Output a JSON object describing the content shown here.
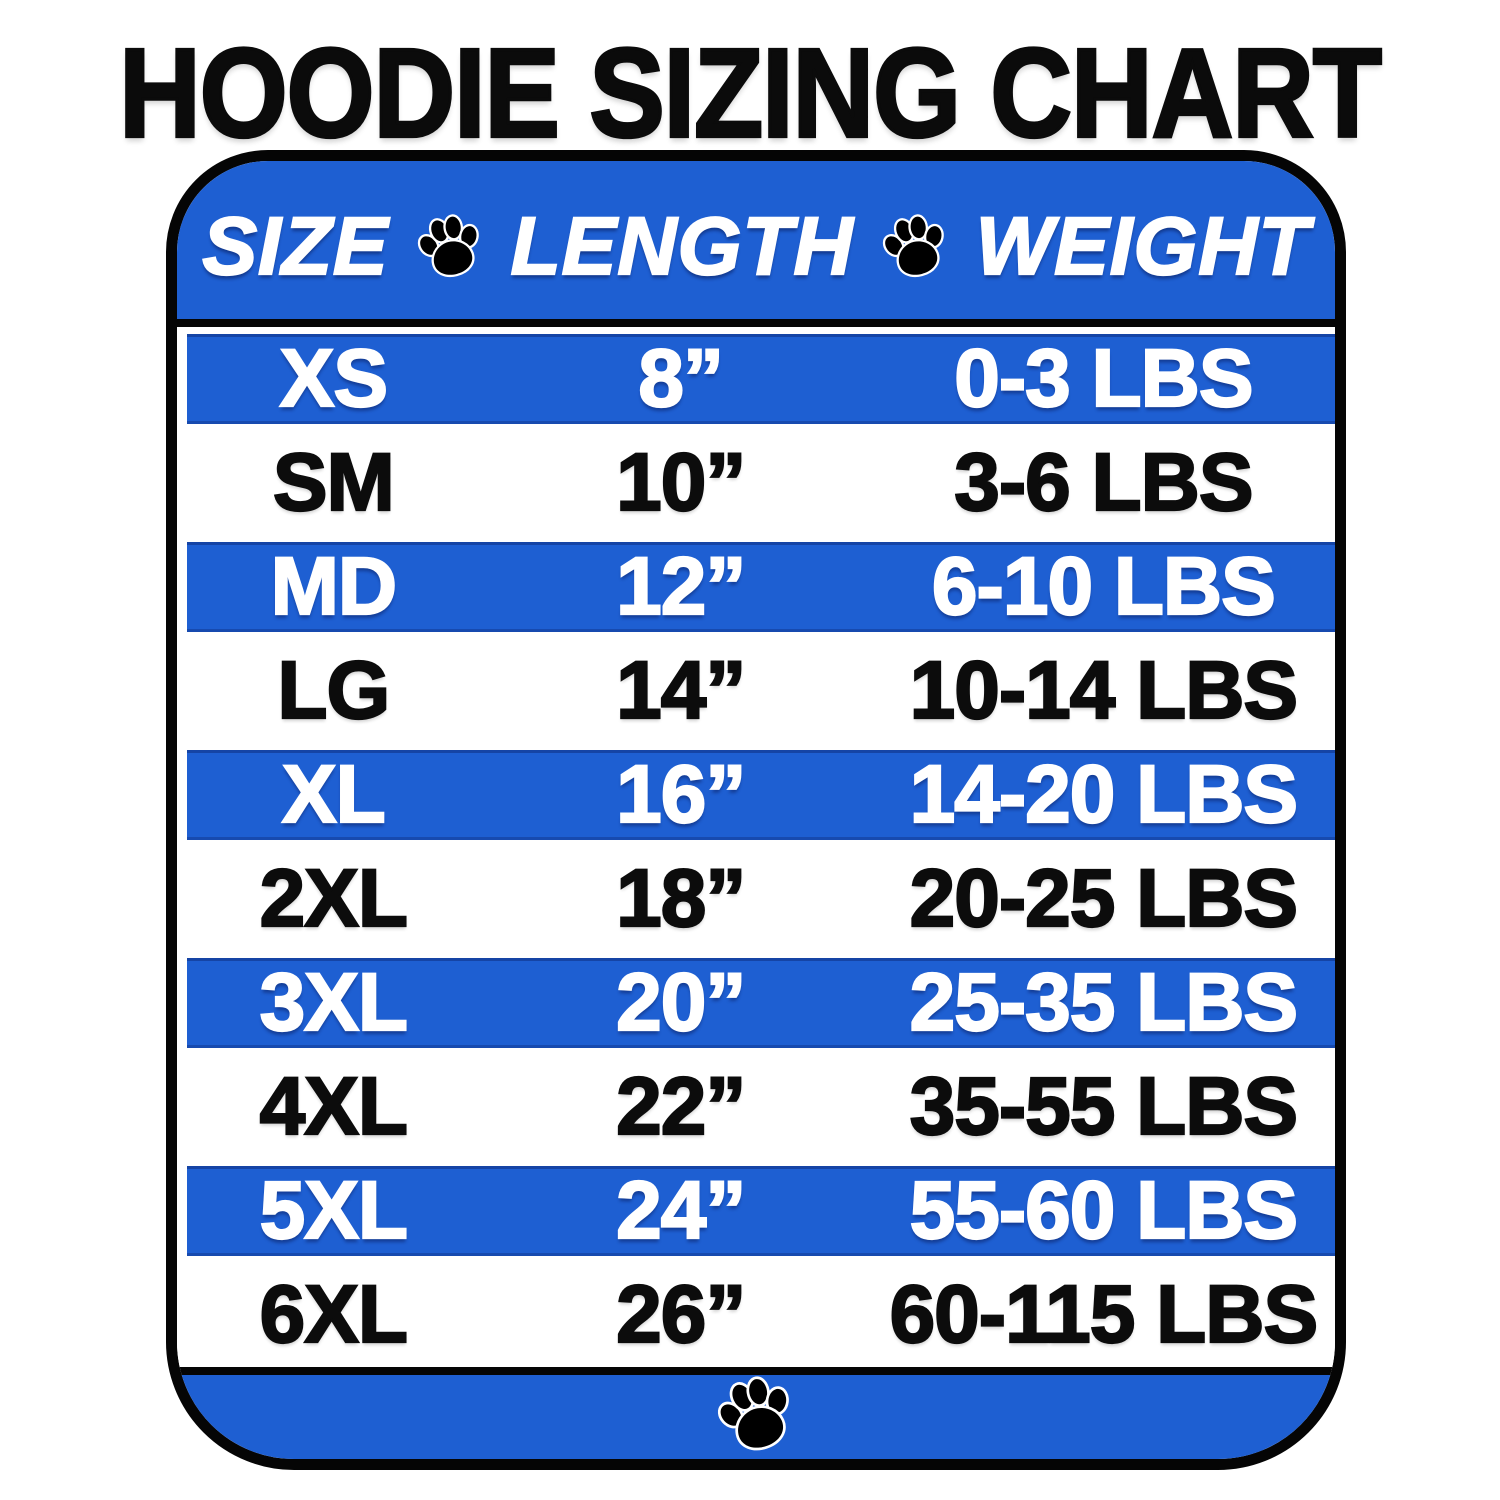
{
  "chart_data": {
    "type": "table",
    "title": "HOODIE SIZING CHART",
    "columns": [
      "SIZE",
      "LENGTH",
      "WEIGHT"
    ],
    "rows": [
      {
        "size": "XS",
        "length": "8”",
        "weight": "0-3 LBS"
      },
      {
        "size": "SM",
        "length": "10”",
        "weight": "3-6 LBS"
      },
      {
        "size": "MD",
        "length": "12”",
        "weight": "6-10 LBS"
      },
      {
        "size": "LG",
        "length": "14”",
        "weight": "10-14 LBS"
      },
      {
        "size": "XL",
        "length": "16”",
        "weight": "14-20 LBS"
      },
      {
        "size": "2XL",
        "length": "18”",
        "weight": "20-25 LBS"
      },
      {
        "size": "3XL",
        "length": "20”",
        "weight": "25-35 LBS"
      },
      {
        "size": "4XL",
        "length": "22”",
        "weight": "35-55 LBS"
      },
      {
        "size": "5XL",
        "length": "24”",
        "weight": "55-60 LBS"
      },
      {
        "size": "6XL",
        "length": "26”",
        "weight": "60-115 LBS"
      }
    ],
    "layout_hints": {
      "row_striping": "alternating blue and white, first data row blue",
      "header_row_background": "blue",
      "footer_background": "blue"
    }
  },
  "icons": {
    "header_separator_1": "paw-icon",
    "header_separator_2": "paw-icon",
    "footer": "paw-icon"
  },
  "colors": {
    "accent_blue": "#1E5FD2",
    "border_black": "#050505",
    "text_on_blue": "#FFFFFF",
    "text_on_white": "#0C0C0C"
  }
}
